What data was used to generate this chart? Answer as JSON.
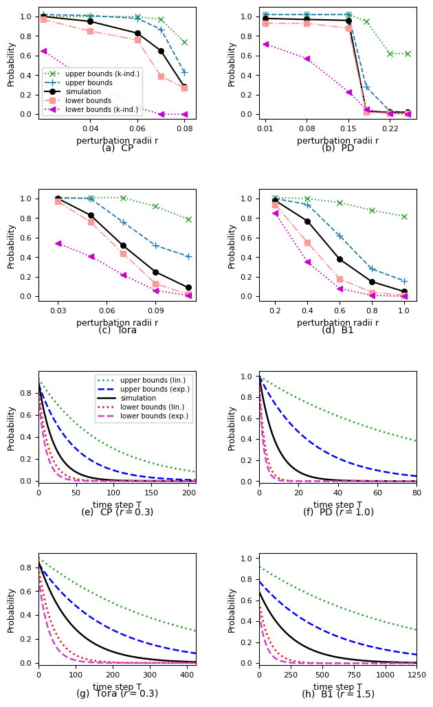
{
  "plots": {
    "CP_r": {
      "title": "(a)  CP",
      "xlabel": "perturbation radii r",
      "ylabel": "Probability",
      "xticks": [
        0.04,
        0.06,
        0.08
      ],
      "xlim": [
        0.018,
        0.085
      ],
      "ylim": [
        -0.05,
        1.1
      ],
      "upper_kind": {
        "x": [
          0.02,
          0.04,
          0.06,
          0.07,
          0.08
        ],
        "y": [
          1.0,
          1.0,
          1.0,
          0.97,
          0.74
        ]
      },
      "upper_bound": {
        "x": [
          0.02,
          0.04,
          0.06,
          0.07,
          0.08
        ],
        "y": [
          1.02,
          1.01,
          0.98,
          0.87,
          0.43
        ]
      },
      "simulation": {
        "x": [
          0.02,
          0.04,
          0.06,
          0.07,
          0.08
        ],
        "y": [
          1.0,
          0.95,
          0.83,
          0.65,
          0.28
        ]
      },
      "lower_bound": {
        "x": [
          0.02,
          0.04,
          0.06,
          0.07,
          0.08
        ],
        "y": [
          0.97,
          0.85,
          0.76,
          0.39,
          0.27
        ]
      },
      "lower_kind": {
        "x": [
          0.02,
          0.04,
          0.06,
          0.07,
          0.08
        ],
        "y": [
          0.65,
          0.33,
          0.07,
          0.0,
          0.0
        ]
      }
    },
    "PD_r": {
      "title": "(b)  PD",
      "xlabel": "perturbation radii r",
      "ylabel": "Probability",
      "xticks": [
        0.01,
        0.08,
        0.15,
        0.22
      ],
      "xlim": [
        0.0,
        0.265
      ],
      "ylim": [
        -0.05,
        1.1
      ],
      "upper_kind": {
        "x": [
          0.01,
          0.08,
          0.15,
          0.18,
          0.22,
          0.25
        ],
        "y": [
          1.02,
          1.02,
          1.02,
          0.95,
          0.62,
          0.62
        ]
      },
      "upper_bound": {
        "x": [
          0.01,
          0.08,
          0.15,
          0.18,
          0.22,
          0.25
        ],
        "y": [
          1.02,
          1.02,
          1.02,
          0.28,
          0.03,
          0.02
        ]
      },
      "simulation": {
        "x": [
          0.01,
          0.08,
          0.15,
          0.18,
          0.22,
          0.25
        ],
        "y": [
          0.98,
          0.97,
          0.96,
          0.03,
          0.02,
          0.02
        ]
      },
      "lower_bound": {
        "x": [
          0.01,
          0.08,
          0.15,
          0.18,
          0.22,
          0.25
        ],
        "y": [
          0.93,
          0.93,
          0.88,
          0.02,
          0.01,
          0.01
        ]
      },
      "lower_kind": {
        "x": [
          0.01,
          0.08,
          0.15,
          0.18,
          0.22,
          0.25
        ],
        "y": [
          0.72,
          0.57,
          0.23,
          0.05,
          0.01,
          0.0
        ]
      }
    },
    "Tora_r": {
      "title": "(c)  Tora",
      "xlabel": "perturbation radii r",
      "ylabel": "Probability",
      "xticks": [
        0.03,
        0.06,
        0.09
      ],
      "xlim": [
        0.018,
        0.115
      ],
      "ylim": [
        -0.05,
        1.1
      ],
      "upper_kind": {
        "x": [
          0.03,
          0.05,
          0.07,
          0.09,
          0.11
        ],
        "y": [
          1.0,
          1.01,
          1.01,
          0.92,
          0.79
        ]
      },
      "upper_bound": {
        "x": [
          0.03,
          0.05,
          0.07,
          0.09,
          0.11
        ],
        "y": [
          1.01,
          1.0,
          0.76,
          0.52,
          0.41
        ]
      },
      "simulation": {
        "x": [
          0.03,
          0.05,
          0.07,
          0.09,
          0.11
        ],
        "y": [
          1.0,
          0.83,
          0.52,
          0.25,
          0.09
        ]
      },
      "lower_bound": {
        "x": [
          0.03,
          0.05,
          0.07,
          0.09,
          0.11
        ],
        "y": [
          0.97,
          0.76,
          0.44,
          0.13,
          0.02
        ]
      },
      "lower_kind": {
        "x": [
          0.03,
          0.05,
          0.07,
          0.09,
          0.11
        ],
        "y": [
          0.54,
          0.41,
          0.22,
          0.06,
          0.01
        ]
      }
    },
    "B1_r": {
      "title": "(d)  B1",
      "xlabel": "perturbation radii r",
      "ylabel": "Probability",
      "xticks": [
        0.2,
        0.4,
        0.6,
        0.8,
        1.0
      ],
      "xlim": [
        0.1,
        1.08
      ],
      "ylim": [
        -0.05,
        1.1
      ],
      "upper_kind": {
        "x": [
          0.2,
          0.4,
          0.6,
          0.8,
          1.0
        ],
        "y": [
          1.01,
          1.0,
          0.96,
          0.88,
          0.82
        ]
      },
      "upper_bound": {
        "x": [
          0.2,
          0.4,
          0.6,
          0.8,
          1.0
        ],
        "y": [
          1.0,
          0.94,
          0.62,
          0.28,
          0.16
        ]
      },
      "simulation": {
        "x": [
          0.2,
          0.4,
          0.6,
          0.8,
          1.0
        ],
        "y": [
          0.98,
          0.77,
          0.38,
          0.15,
          0.05
        ]
      },
      "lower_bound": {
        "x": [
          0.2,
          0.4,
          0.6,
          0.8,
          1.0
        ],
        "y": [
          0.94,
          0.55,
          0.18,
          0.04,
          0.01
        ]
      },
      "lower_kind": {
        "x": [
          0.2,
          0.4,
          0.6,
          0.8,
          1.0
        ],
        "y": [
          0.85,
          0.35,
          0.08,
          0.01,
          0.0
        ]
      }
    }
  },
  "time_plots": {
    "CP_t": {
      "title": "(e)  CP ($r = 0.3$)",
      "xlabel": "time step T",
      "ylabel": "Probability",
      "xmax": 210,
      "ylim": [
        -0.02,
        1.0
      ],
      "yticks": [
        0.0,
        0.2,
        0.4,
        0.6,
        0.8
      ],
      "upper_lin": {
        "a": 0.93,
        "decay": 0.0115
      },
      "upper_exp": {
        "a": 0.88,
        "decay": 0.022
      },
      "simulation": {
        "a": 0.9,
        "decay": 0.048
      },
      "lower_lin": {
        "a": 0.83,
        "decay": 0.075
      },
      "lower_exp": {
        "a": 0.78,
        "decay": 0.1
      },
      "show_legend": true
    },
    "PD_t": {
      "title": "(f)  PD ($r = 1.0$)",
      "xlabel": "time step T",
      "ylabel": "Probability",
      "xmax": 80,
      "ylim": [
        -0.02,
        1.05
      ],
      "yticks": [
        0.0,
        0.2,
        0.4,
        0.6,
        0.8,
        1.0
      ],
      "upper_lin": {
        "a": 1.0,
        "decay": 0.012
      },
      "upper_exp": {
        "a": 1.0,
        "decay": 0.038
      },
      "simulation": {
        "a": 1.0,
        "decay": 0.12
      },
      "lower_lin": {
        "a": 0.95,
        "decay": 0.35
      },
      "lower_exp": {
        "a": 0.92,
        "decay": 0.45
      },
      "show_legend": false
    },
    "Tora_t": {
      "title": "(g)  Tora ($r = 0.3$)",
      "xlabel": "time step T",
      "ylabel": "Probability",
      "xmax": 425,
      "ylim": [
        -0.02,
        0.92
      ],
      "yticks": [
        0.0,
        0.2,
        0.4,
        0.6,
        0.8
      ],
      "upper_lin": {
        "a": 0.88,
        "decay": 0.0028
      },
      "upper_exp": {
        "a": 0.83,
        "decay": 0.0055
      },
      "simulation": {
        "a": 0.85,
        "decay": 0.011
      },
      "lower_lin": {
        "a": 0.8,
        "decay": 0.025
      },
      "lower_exp": {
        "a": 0.72,
        "decay": 0.035
      },
      "show_legend": false
    },
    "B1_t": {
      "title": "(h)  B1 ($r = 1.5$)",
      "xlabel": "time step T",
      "ylabel": "Probability",
      "xmax": 1250,
      "ylim": [
        -0.02,
        1.05
      ],
      "yticks": [
        0.0,
        0.2,
        0.4,
        0.6,
        0.8,
        1.0
      ],
      "upper_lin": {
        "a": 0.92,
        "decay": 0.00085
      },
      "upper_exp": {
        "a": 0.78,
        "decay": 0.0018
      },
      "simulation": {
        "a": 0.68,
        "decay": 0.004
      },
      "lower_lin": {
        "a": 0.58,
        "decay": 0.012
      },
      "lower_exp": {
        "a": 0.48,
        "decay": 0.018
      },
      "show_legend": false
    }
  },
  "colors": {
    "upper_kind": "#2ca02c",
    "upper_bound": "#1f77b4",
    "simulation": "#000000",
    "lower_bound": "#ff9999",
    "lower_kind": "#cc00cc",
    "upper_lin": "#2ca02c",
    "upper_exp": "#0000ff",
    "lower_lin": "#ff0000",
    "lower_exp": "#cc44cc"
  }
}
